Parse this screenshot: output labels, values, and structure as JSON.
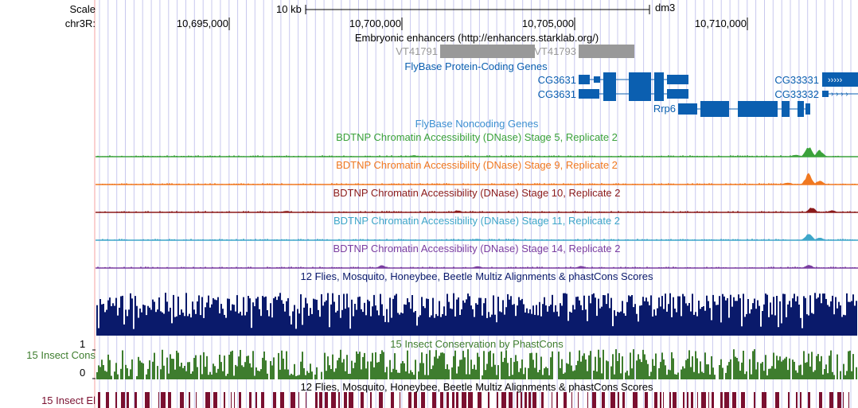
{
  "scale": {
    "scale_label": "Scale",
    "chrom_label": "chr3R:",
    "bar_label": "10 kb",
    "assembly": "dm3",
    "ticks": [
      "10,695,000",
      "10,700,000",
      "10,705,000",
      "10,710,000"
    ]
  },
  "enhancers": {
    "title": "Embryonic enhancers (http://enhancers.starklab.org/)",
    "items": [
      "VT41791",
      "VT41793"
    ],
    "color": "#999999"
  },
  "coding_genes": {
    "title": "FlyBase Protein-Coding Genes",
    "color": "#0b5fb0",
    "genes": [
      "CG3631",
      "CG3631",
      "Rrp6",
      "CG33331",
      "CG33332"
    ]
  },
  "noncoding_genes": {
    "title": "FlyBase Noncoding Genes",
    "color": "#3d8fd1"
  },
  "dnase_tracks": [
    {
      "title": "BDTNP Chromatin Accessibility (DNase) Stage 5, Replicate 2",
      "color": "#3ba23b"
    },
    {
      "title": "BDTNP Chromatin Accessibility (DNase) Stage 9, Replicate 2",
      "color": "#f07820"
    },
    {
      "title": "BDTNP Chromatin Accessibility (DNase) Stage 10, Replicate 2",
      "color": "#8b1a1a"
    },
    {
      "title": "BDTNP Chromatin Accessibility (DNase) Stage 11, Replicate 2",
      "color": "#3ea6c9"
    },
    {
      "title": "BDTNP Chromatin Accessibility (DNase) Stage 14, Replicate 2",
      "color": "#7a3da0"
    }
  ],
  "multiz": {
    "title": "12 Flies, Mosquito, Honeybee, Beetle Multiz Alignments & phastCons Scores",
    "color": "#0a1a6b"
  },
  "cons": {
    "left_label": "15 Insect Cons",
    "title": "15 Insect Conservation by PhastCons",
    "ymax_label": "1",
    "ymin_label": "0",
    "color": "#3e7d2e"
  },
  "el": {
    "left_label": "15 Insect El",
    "title": "12 Flies, Mosquito, Honeybee, Beetle Multiz Alignments & phastCons Scores",
    "color": "#7a1030"
  },
  "colors": {
    "grid": "#c8c8ee",
    "left_rule": "#f4a0a0"
  }
}
